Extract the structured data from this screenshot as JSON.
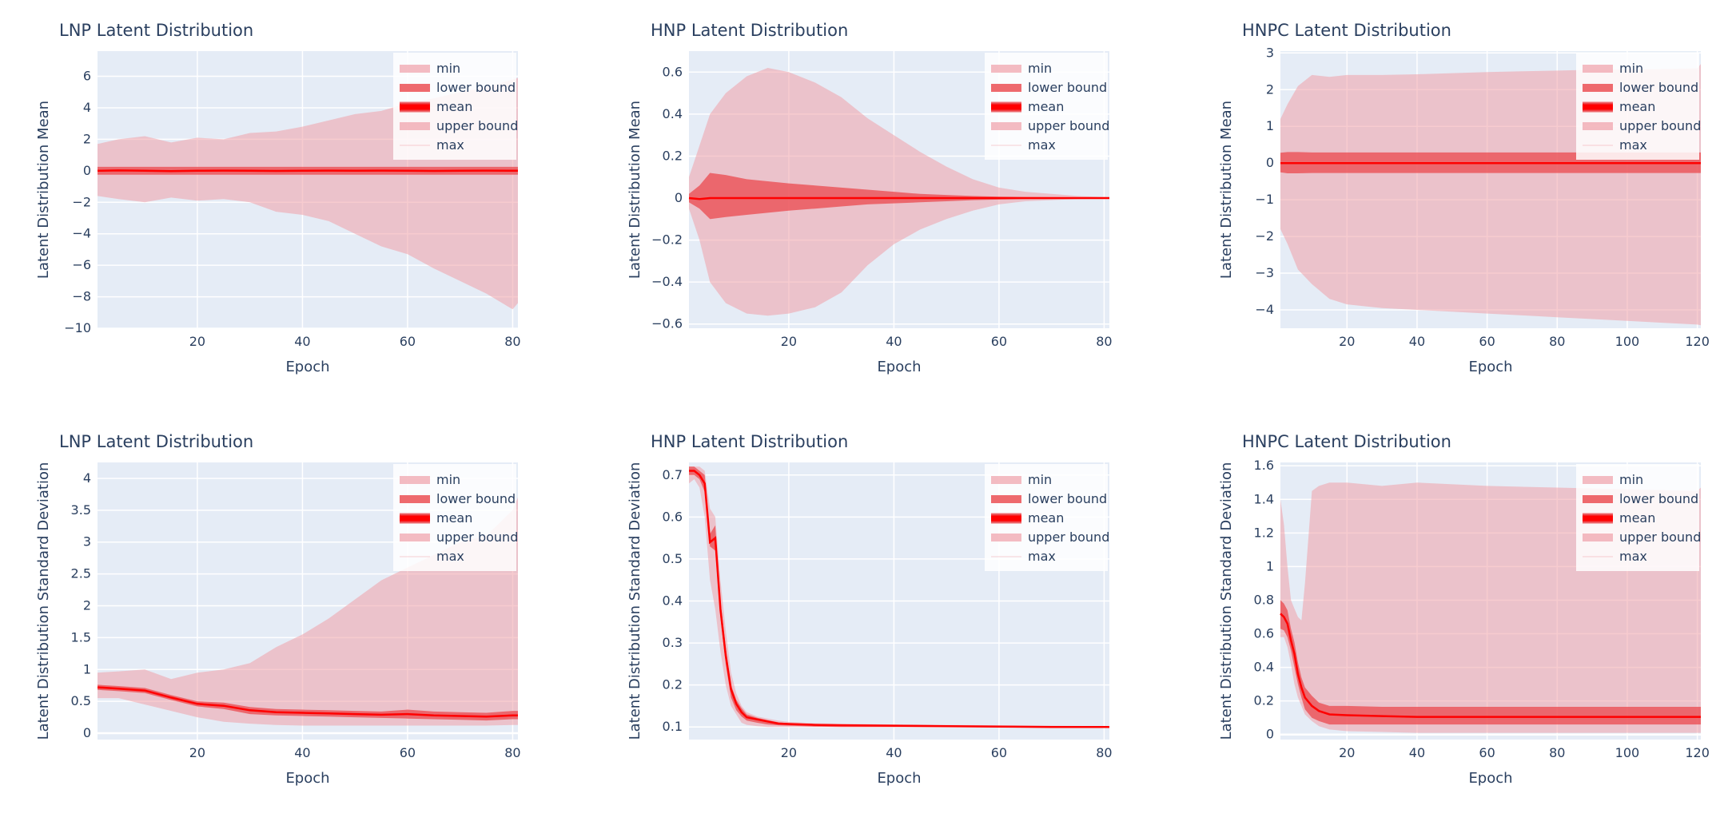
{
  "chart_data": [
    {
      "id": "lnp-mean",
      "type": "area",
      "title": "LNP Latent Distribution",
      "xlabel": "Epoch",
      "ylabel": "Latent Distribution Mean",
      "xlim": [
        1,
        81
      ],
      "ylim": [
        -10,
        7.6
      ],
      "xticks": [
        20,
        40,
        60,
        80
      ],
      "yticks": [
        -10,
        -8,
        -6,
        -4,
        -2,
        0,
        2,
        4,
        6
      ],
      "ytick_labels": [
        "−10",
        "−8",
        "−6",
        "−4",
        "−2",
        "0",
        "2",
        "4",
        "6"
      ],
      "legend": [
        "min",
        "lower bound",
        "mean",
        "upper bound",
        "max"
      ],
      "legend_position": "top-right",
      "x": [
        1,
        5,
        10,
        15,
        20,
        25,
        30,
        35,
        40,
        45,
        50,
        55,
        60,
        65,
        70,
        75,
        80,
        81
      ],
      "series": [
        {
          "name": "min",
          "values": [
            -1.6,
            -1.8,
            -2.0,
            -1.7,
            -1.9,
            -1.8,
            -2.0,
            -2.6,
            -2.8,
            -3.2,
            -4.0,
            -4.8,
            -5.3,
            -6.2,
            -7.0,
            -7.8,
            -8.8,
            -8.4
          ]
        },
        {
          "name": "lower bound",
          "values": [
            -0.25,
            -0.25,
            -0.25,
            -0.25,
            -0.25,
            -0.25,
            -0.25,
            -0.25,
            -0.25,
            -0.25,
            -0.25,
            -0.25,
            -0.25,
            -0.25,
            -0.25,
            -0.25,
            -0.25,
            -0.25
          ]
        },
        {
          "name": "mean",
          "values": [
            0,
            0.02,
            0,
            -0.02,
            0,
            0.01,
            0,
            -0.01,
            0,
            0.01,
            0,
            0.01,
            0,
            -0.01,
            0,
            0.01,
            0,
            0
          ]
        },
        {
          "name": "upper bound",
          "values": [
            0.25,
            0.25,
            0.25,
            0.25,
            0.25,
            0.25,
            0.25,
            0.25,
            0.25,
            0.25,
            0.25,
            0.25,
            0.25,
            0.25,
            0.25,
            0.25,
            0.25,
            0.25
          ]
        },
        {
          "name": "max",
          "values": [
            1.7,
            2.0,
            2.2,
            1.8,
            2.1,
            2.0,
            2.4,
            2.5,
            2.8,
            3.2,
            3.6,
            3.8,
            4.3,
            4.6,
            5.0,
            5.3,
            5.8,
            5.9
          ]
        }
      ]
    },
    {
      "id": "hnp-mean",
      "type": "area",
      "title": "HNP Latent Distribution",
      "xlabel": "Epoch",
      "ylabel": "Latent Distribution Mean",
      "xlim": [
        1,
        81
      ],
      "ylim": [
        -0.62,
        0.7
      ],
      "xticks": [
        20,
        40,
        60,
        80
      ],
      "yticks": [
        -0.6,
        -0.4,
        -0.2,
        0,
        0.2,
        0.4,
        0.6
      ],
      "ytick_labels": [
        "−0.6",
        "−0.4",
        "−0.2",
        "0",
        "0.2",
        "0.4",
        "0.6"
      ],
      "legend": [
        "min",
        "lower bound",
        "mean",
        "upper bound",
        "max"
      ],
      "legend_position": "top-right",
      "x": [
        1,
        3,
        5,
        8,
        12,
        16,
        20,
        25,
        30,
        35,
        40,
        45,
        50,
        55,
        60,
        65,
        70,
        75,
        80,
        81
      ],
      "series": [
        {
          "name": "min",
          "values": [
            -0.05,
            -0.2,
            -0.4,
            -0.5,
            -0.55,
            -0.56,
            -0.55,
            -0.52,
            -0.45,
            -0.32,
            -0.22,
            -0.15,
            -0.1,
            -0.06,
            -0.03,
            -0.015,
            -0.01,
            -0.005,
            -0.003,
            -0.003
          ]
        },
        {
          "name": "lower bound",
          "values": [
            -0.02,
            -0.05,
            -0.1,
            -0.09,
            -0.08,
            -0.07,
            -0.06,
            -0.05,
            -0.04,
            -0.03,
            -0.025,
            -0.02,
            -0.015,
            -0.01,
            -0.007,
            -0.005,
            -0.004,
            -0.003,
            -0.002,
            -0.002
          ]
        },
        {
          "name": "mean",
          "values": [
            0,
            -0.005,
            0,
            0,
            0,
            0,
            0,
            0,
            0,
            0,
            0,
            0,
            0,
            0,
            0,
            0,
            0,
            0,
            0,
            0
          ]
        },
        {
          "name": "upper bound",
          "values": [
            0.02,
            0.06,
            0.12,
            0.11,
            0.09,
            0.08,
            0.07,
            0.06,
            0.05,
            0.04,
            0.03,
            0.02,
            0.015,
            0.01,
            0.007,
            0.005,
            0.004,
            0.003,
            0.002,
            0.002
          ]
        },
        {
          "name": "max",
          "values": [
            0.1,
            0.25,
            0.4,
            0.5,
            0.58,
            0.62,
            0.6,
            0.55,
            0.48,
            0.38,
            0.3,
            0.22,
            0.15,
            0.09,
            0.05,
            0.03,
            0.02,
            0.01,
            0.005,
            0.005
          ]
        }
      ]
    },
    {
      "id": "hnpc-mean",
      "type": "area",
      "title": "HNPC Latent Distribution",
      "xlabel": "Epoch",
      "ylabel": "Latent Distribution Mean",
      "xlim": [
        1,
        121
      ],
      "ylim": [
        -4.5,
        3.05
      ],
      "xticks": [
        20,
        40,
        60,
        80,
        100,
        120
      ],
      "yticks": [
        -4,
        -3,
        -2,
        -1,
        0,
        1,
        2,
        3
      ],
      "ytick_labels": [
        "−4",
        "−3",
        "−2",
        "−1",
        "0",
        "1",
        "2",
        "3"
      ],
      "legend": [
        "min",
        "lower bound",
        "mean",
        "upper bound",
        "max"
      ],
      "legend_position": "top-right",
      "x": [
        1,
        3,
        6,
        10,
        15,
        20,
        30,
        40,
        50,
        60,
        70,
        80,
        90,
        100,
        110,
        120,
        121
      ],
      "series": [
        {
          "name": "min",
          "values": [
            -1.8,
            -2.2,
            -2.9,
            -3.3,
            -3.7,
            -3.85,
            -3.95,
            -4.0,
            -4.05,
            -4.1,
            -4.15,
            -4.2,
            -4.25,
            -4.3,
            -4.35,
            -4.4,
            -4.42
          ]
        },
        {
          "name": "lower bound",
          "values": [
            -0.25,
            -0.28,
            -0.28,
            -0.27,
            -0.27,
            -0.27,
            -0.27,
            -0.27,
            -0.27,
            -0.27,
            -0.27,
            -0.27,
            -0.27,
            -0.27,
            -0.27,
            -0.27,
            -0.27
          ]
        },
        {
          "name": "mean",
          "values": [
            0,
            0,
            0,
            0,
            0,
            0,
            0,
            0,
            0,
            0,
            0,
            0,
            0,
            0,
            0,
            0,
            0
          ]
        },
        {
          "name": "upper bound",
          "values": [
            0.28,
            0.3,
            0.3,
            0.29,
            0.29,
            0.29,
            0.29,
            0.29,
            0.29,
            0.29,
            0.29,
            0.29,
            0.29,
            0.29,
            0.29,
            0.29,
            0.29
          ]
        },
        {
          "name": "max",
          "values": [
            1.2,
            1.6,
            2.1,
            2.4,
            2.35,
            2.4,
            2.4,
            2.42,
            2.45,
            2.48,
            2.5,
            2.52,
            2.54,
            2.55,
            2.56,
            2.58,
            2.7
          ]
        }
      ]
    },
    {
      "id": "lnp-std",
      "type": "area",
      "title": "LNP Latent Distribution",
      "xlabel": "Epoch",
      "ylabel": "Latent Distribution Standard Deviation",
      "xlim": [
        1,
        81
      ],
      "ylim": [
        -0.1,
        4.25
      ],
      "xticks": [
        20,
        40,
        60,
        80
      ],
      "yticks": [
        0,
        0.5,
        1,
        1.5,
        2,
        2.5,
        3,
        3.5,
        4
      ],
      "ytick_labels": [
        "0",
        "0.5",
        "1",
        "1.5",
        "2",
        "2.5",
        "3",
        "3.5",
        "4"
      ],
      "legend": [
        "min",
        "lower bound",
        "mean",
        "upper bound",
        "max"
      ],
      "legend_position": "top-right",
      "x": [
        1,
        5,
        10,
        15,
        20,
        25,
        30,
        35,
        40,
        45,
        50,
        55,
        60,
        65,
        70,
        75,
        80,
        81
      ],
      "series": [
        {
          "name": "min",
          "values": [
            0.55,
            0.55,
            0.45,
            0.35,
            0.25,
            0.18,
            0.15,
            0.13,
            0.12,
            0.12,
            0.12,
            0.12,
            0.12,
            0.12,
            0.12,
            0.12,
            0.13,
            0.13
          ]
        },
        {
          "name": "lower bound",
          "values": [
            0.68,
            0.66,
            0.63,
            0.52,
            0.42,
            0.38,
            0.3,
            0.28,
            0.27,
            0.26,
            0.25,
            0.24,
            0.23,
            0.22,
            0.21,
            0.2,
            0.22,
            0.22
          ]
        },
        {
          "name": "mean",
          "values": [
            0.72,
            0.7,
            0.67,
            0.56,
            0.46,
            0.43,
            0.36,
            0.33,
            0.32,
            0.31,
            0.3,
            0.29,
            0.3,
            0.28,
            0.27,
            0.26,
            0.28,
            0.28
          ]
        },
        {
          "name": "upper bound",
          "values": [
            0.76,
            0.74,
            0.71,
            0.6,
            0.5,
            0.48,
            0.41,
            0.38,
            0.37,
            0.36,
            0.35,
            0.34,
            0.37,
            0.34,
            0.33,
            0.32,
            0.35,
            0.35
          ]
        },
        {
          "name": "max",
          "values": [
            0.95,
            0.97,
            1.0,
            0.85,
            0.95,
            1.0,
            1.1,
            1.35,
            1.55,
            1.8,
            2.1,
            2.4,
            2.6,
            2.8,
            3.0,
            3.1,
            3.5,
            3.7
          ]
        }
      ]
    },
    {
      "id": "hnp-std",
      "type": "area",
      "title": "HNP Latent Distribution",
      "xlabel": "Epoch",
      "ylabel": "Latent Distribution Standard Deviation",
      "xlim": [
        1,
        81
      ],
      "ylim": [
        0.07,
        0.73
      ],
      "xticks": [
        20,
        40,
        60,
        80
      ],
      "yticks": [
        0.1,
        0.2,
        0.3,
        0.4,
        0.5,
        0.6,
        0.7
      ],
      "ytick_labels": [
        "0.1",
        "0.2",
        "0.3",
        "0.4",
        "0.5",
        "0.6",
        "0.7"
      ],
      "legend": [
        "min",
        "lower bound",
        "mean",
        "upper bound",
        "max"
      ],
      "legend_position": "top-right",
      "x": [
        1,
        2,
        3,
        4,
        5,
        6,
        7,
        8,
        9,
        10,
        11,
        12,
        14,
        16,
        18,
        20,
        25,
        30,
        40,
        50,
        60,
        70,
        80,
        81
      ],
      "series": [
        {
          "name": "min",
          "values": [
            0.68,
            0.69,
            0.67,
            0.6,
            0.45,
            0.38,
            0.28,
            0.2,
            0.15,
            0.13,
            0.11,
            0.105,
            0.102,
            0.1,
            0.1,
            0.1,
            0.1,
            0.1,
            0.1,
            0.1,
            0.1,
            0.1,
            0.1,
            0.1
          ]
        },
        {
          "name": "lower bound",
          "values": [
            0.7,
            0.7,
            0.69,
            0.66,
            0.53,
            0.52,
            0.36,
            0.25,
            0.17,
            0.14,
            0.125,
            0.115,
            0.11,
            0.106,
            0.104,
            0.103,
            0.101,
            0.1,
            0.1,
            0.1,
            0.099,
            0.099,
            0.099,
            0.099
          ]
        },
        {
          "name": "mean",
          "values": [
            0.71,
            0.71,
            0.7,
            0.68,
            0.54,
            0.55,
            0.38,
            0.27,
            0.19,
            0.155,
            0.135,
            0.123,
            0.118,
            0.113,
            0.108,
            0.107,
            0.105,
            0.104,
            0.103,
            0.102,
            0.101,
            0.1,
            0.1,
            0.1
          ]
        },
        {
          "name": "upper bound",
          "values": [
            0.72,
            0.72,
            0.71,
            0.7,
            0.56,
            0.58,
            0.4,
            0.29,
            0.2,
            0.165,
            0.145,
            0.13,
            0.122,
            0.116,
            0.111,
            0.109,
            0.107,
            0.106,
            0.105,
            0.104,
            0.102,
            0.101,
            0.101,
            0.101
          ]
        },
        {
          "name": "max",
          "values": [
            0.72,
            0.72,
            0.72,
            0.71,
            0.62,
            0.6,
            0.45,
            0.33,
            0.23,
            0.18,
            0.15,
            0.135,
            0.125,
            0.12,
            0.115,
            0.112,
            0.109,
            0.108,
            0.106,
            0.105,
            0.104,
            0.103,
            0.102,
            0.102
          ]
        }
      ]
    },
    {
      "id": "hnpc-std",
      "type": "area",
      "title": "HNPC Latent Distribution",
      "xlabel": "Epoch",
      "ylabel": "Latent Distribution Standard Deviation",
      "xlim": [
        1,
        121
      ],
      "ylim": [
        -0.03,
        1.62
      ],
      "xticks": [
        20,
        40,
        60,
        80,
        100,
        120
      ],
      "yticks": [
        0,
        0.2,
        0.4,
        0.6,
        0.8,
        1,
        1.2,
        1.4,
        1.6
      ],
      "ytick_labels": [
        "0",
        "0.2",
        "0.4",
        "0.6",
        "0.8",
        "1",
        "1.2",
        "1.4",
        "1.6"
      ],
      "legend": [
        "min",
        "lower bound",
        "mean",
        "upper bound",
        "max"
      ],
      "legend_position": "top-right",
      "x": [
        1,
        2,
        3,
        4,
        5,
        6,
        7,
        8,
        10,
        12,
        15,
        20,
        30,
        40,
        60,
        80,
        100,
        120,
        121
      ],
      "series": [
        {
          "name": "min",
          "values": [
            0.58,
            0.58,
            0.52,
            0.42,
            0.3,
            0.22,
            0.17,
            0.12,
            0.08,
            0.05,
            0.03,
            0.02,
            0.015,
            0.01,
            0.01,
            0.01,
            0.01,
            0.01,
            0.01
          ]
        },
        {
          "name": "lower bound",
          "values": [
            0.63,
            0.62,
            0.58,
            0.5,
            0.4,
            0.3,
            0.22,
            0.15,
            0.1,
            0.08,
            0.06,
            0.06,
            0.06,
            0.06,
            0.06,
            0.06,
            0.06,
            0.06,
            0.06
          ]
        },
        {
          "name": "mean",
          "values": [
            0.72,
            0.7,
            0.66,
            0.56,
            0.48,
            0.36,
            0.28,
            0.22,
            0.17,
            0.14,
            0.12,
            0.115,
            0.11,
            0.105,
            0.105,
            0.105,
            0.105,
            0.105,
            0.105
          ]
        },
        {
          "name": "upper bound",
          "values": [
            0.8,
            0.78,
            0.74,
            0.63,
            0.55,
            0.43,
            0.34,
            0.28,
            0.23,
            0.19,
            0.17,
            0.17,
            0.165,
            0.165,
            0.165,
            0.165,
            0.165,
            0.165,
            0.165
          ]
        },
        {
          "name": "max",
          "values": [
            1.4,
            1.25,
            1.0,
            0.8,
            0.75,
            0.7,
            0.68,
            0.9,
            1.45,
            1.48,
            1.5,
            1.5,
            1.48,
            1.5,
            1.48,
            1.47,
            1.46,
            1.45,
            1.47
          ]
        }
      ]
    }
  ]
}
